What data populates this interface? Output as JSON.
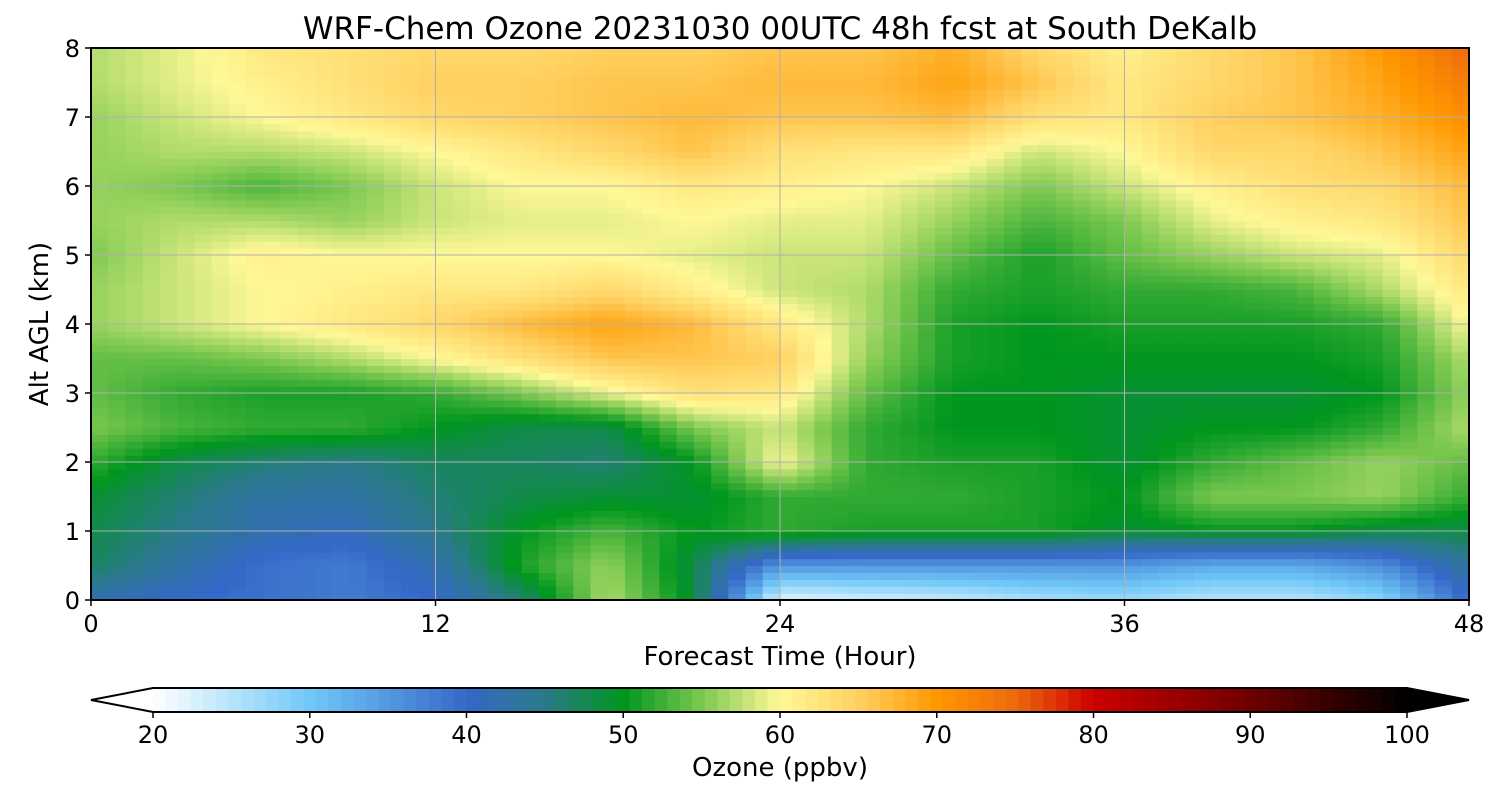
{
  "chart_data": {
    "type": "heatmap",
    "title": "WRF-Chem Ozone  20231030 00UTC 48h fcst at South DeKalb",
    "xlabel": "Forecast Time (Hour)",
    "ylabel": "Alt AGL (km)",
    "xlim": [
      0,
      48
    ],
    "ylim": [
      0,
      8
    ],
    "x_ticks": [
      "0",
      "12",
      "24",
      "36",
      "48"
    ],
    "y_ticks": [
      "0",
      "1",
      "2",
      "3",
      "4",
      "5",
      "6",
      "7",
      "8"
    ],
    "grid": true,
    "x": [
      0,
      3,
      6,
      9,
      12,
      15,
      18,
      21,
      24,
      27,
      30,
      33,
      36,
      39,
      42,
      45,
      48
    ],
    "y": [
      0,
      0.5,
      1,
      1.5,
      2,
      2.5,
      3,
      3.5,
      4,
      4.5,
      5,
      5.5,
      6,
      6.5,
      7,
      7.5,
      8
    ],
    "z_units": "ppbv",
    "z": [
      [
        42,
        40,
        39,
        38,
        40,
        46,
        57,
        49,
        22,
        23,
        24,
        26,
        27,
        25,
        25,
        28,
        40
      ],
      [
        47,
        43,
        39,
        38,
        42,
        51,
        56,
        48,
        35,
        35,
        35,
        35,
        35,
        33,
        33,
        36,
        44
      ],
      [
        48,
        45,
        42,
        41,
        45,
        50,
        53,
        50,
        52,
        51,
        51,
        51,
        49,
        50,
        50,
        48,
        48
      ],
      [
        49,
        46,
        43,
        43,
        46,
        48,
        49,
        49,
        52,
        52,
        52,
        51,
        50,
        55,
        55,
        56,
        52
      ],
      [
        52,
        48,
        46,
        45,
        47,
        47,
        46,
        50,
        60,
        52,
        51,
        51,
        49,
        52,
        54,
        56,
        54
      ],
      [
        55,
        53,
        52,
        52,
        50,
        48,
        48,
        55,
        58,
        52,
        50,
        50,
        49,
        50,
        50,
        52,
        57
      ],
      [
        54,
        52,
        51,
        51,
        52,
        55,
        59,
        63,
        62,
        54,
        50,
        50,
        49,
        49,
        49,
        50,
        56
      ],
      [
        54,
        54,
        55,
        57,
        60,
        63,
        66,
        66,
        65,
        56,
        51,
        50,
        50,
        50,
        50,
        51,
        57
      ],
      [
        56,
        58,
        60,
        62,
        64,
        67,
        69,
        67,
        62,
        57,
        51,
        50,
        51,
        51,
        51,
        52,
        60
      ],
      [
        56,
        58,
        60,
        61,
        62,
        62,
        64,
        61,
        58,
        57,
        52,
        51,
        52,
        52,
        53,
        57,
        62
      ],
      [
        55,
        58,
        61,
        60,
        60,
        60,
        60,
        59,
        58,
        58,
        54,
        51,
        54,
        56,
        58,
        59,
        64
      ],
      [
        56,
        57,
        57,
        56,
        58,
        59,
        59,
        60,
        59,
        59,
        56,
        53,
        55,
        59,
        61,
        62,
        66
      ],
      [
        56,
        55,
        53,
        55,
        58,
        60,
        60,
        62,
        61,
        60,
        58,
        55,
        58,
        61,
        63,
        64,
        67
      ],
      [
        56,
        57,
        57,
        58,
        60,
        62,
        64,
        66,
        63,
        62,
        62,
        58,
        60,
        64,
        64,
        66,
        69
      ],
      [
        56,
        58,
        60,
        62,
        64,
        65,
        66,
        67,
        66,
        66,
        67,
        63,
        62,
        65,
        66,
        68,
        71
      ],
      [
        57,
        59,
        61,
        63,
        65,
        65,
        66,
        66,
        67,
        67,
        69,
        66,
        62,
        64,
        66,
        69,
        73
      ],
      [
        57,
        59,
        62,
        63,
        64,
        64,
        65,
        65,
        66,
        66,
        68,
        64,
        61,
        64,
        66,
        70,
        75
      ]
    ],
    "colorbar": {
      "label": "Ozone  (ppbv)",
      "min": 20,
      "max": 100,
      "ticks": [
        "20",
        "30",
        "40",
        "50",
        "60",
        "70",
        "80",
        "90",
        "100"
      ],
      "extend": "both",
      "stops": [
        {
          "v": 20,
          "c": "#ffffff"
        },
        {
          "v": 30,
          "c": "#70c8f8"
        },
        {
          "v": 40,
          "c": "#3568c8"
        },
        {
          "v": 45,
          "c": "#2a7a8a"
        },
        {
          "v": 50,
          "c": "#00961e"
        },
        {
          "v": 55,
          "c": "#7cc850"
        },
        {
          "v": 60,
          "c": "#fff897"
        },
        {
          "v": 65,
          "c": "#ffd060"
        },
        {
          "v": 70,
          "c": "#ff9800"
        },
        {
          "v": 75,
          "c": "#ee6a0e"
        },
        {
          "v": 80,
          "c": "#cc0000"
        },
        {
          "v": 90,
          "c": "#6e0000"
        },
        {
          "v": 100,
          "c": "#000000"
        }
      ]
    }
  }
}
